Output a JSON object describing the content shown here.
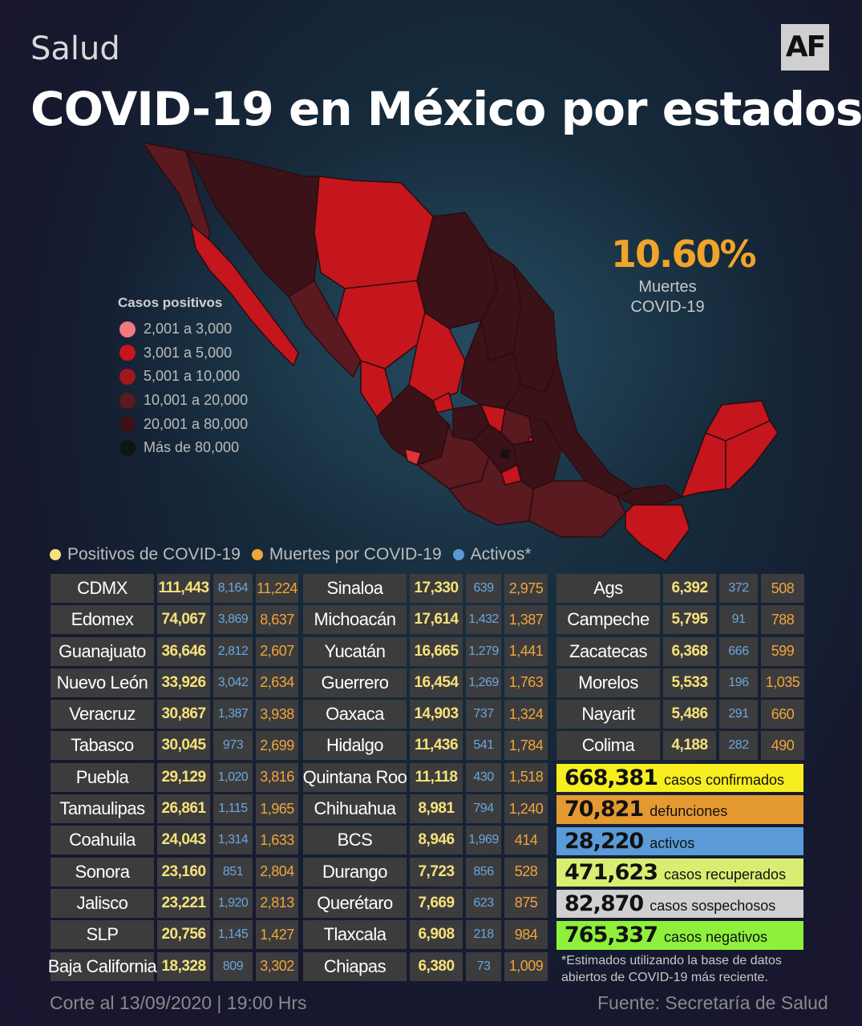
{
  "header": {
    "section": "Salud",
    "logo": "AF",
    "title": "COVID-19 en México por estados"
  },
  "stat": {
    "value": "10.60%",
    "label_line1": "Muertes",
    "label_line2": "COVID-19"
  },
  "legend": {
    "title": "Casos positivos",
    "items": [
      {
        "label": "2,001 a 3,000",
        "color": "#f07a7f"
      },
      {
        "label": "3,001  a  5,000",
        "color": "#c4161c"
      },
      {
        "label": "5,001  a  10,000",
        "color": "#a0181f"
      },
      {
        "label": "10,001 a  20,000",
        "color": "#5a1a1f"
      },
      {
        "label": "20,001 a  80,000",
        "color": "#3b1217"
      },
      {
        "label": "Más  de  80,000",
        "color": "#111416"
      }
    ]
  },
  "key": {
    "positivos": "Positivos de COVID-19",
    "muertes": "Muertes por COVID-19",
    "activos": "Activos*"
  },
  "colors": {
    "positivos": "#f6e27a",
    "muertes": "#f0a53a",
    "activos": "#6aa7dd"
  },
  "states": [
    {
      "name": "CDMX",
      "positivos": "111,443",
      "activos": "8,164",
      "muertes": "11,224"
    },
    {
      "name": "Edomex",
      "positivos": "74,067",
      "activos": "3,869",
      "muertes": "8,637"
    },
    {
      "name": "Guanajuato",
      "positivos": "36,646",
      "activos": "2,812",
      "muertes": "2,607"
    },
    {
      "name": "Nuevo León",
      "positivos": "33,926",
      "activos": "3,042",
      "muertes": "2,634"
    },
    {
      "name": "Veracruz",
      "positivos": "30,867",
      "activos": "1,387",
      "muertes": "3,938"
    },
    {
      "name": "Tabasco",
      "positivos": "30,045",
      "activos": "973",
      "muertes": "2,699"
    },
    {
      "name": "Puebla",
      "positivos": "29,129",
      "activos": "1,020",
      "muertes": "3,816"
    },
    {
      "name": "Tamaulipas",
      "positivos": "26,861",
      "activos": "1,115",
      "muertes": "1,965"
    },
    {
      "name": "Coahuila",
      "positivos": "24,043",
      "activos": "1,314",
      "muertes": "1,633"
    },
    {
      "name": "Sonora",
      "positivos": "23,160",
      "activos": "851",
      "muertes": "2,804"
    },
    {
      "name": "Jalisco",
      "positivos": "23,221",
      "activos": "1,920",
      "muertes": "2,813"
    },
    {
      "name": "SLP",
      "positivos": "20,756",
      "activos": "1,145",
      "muertes": "1,427"
    },
    {
      "name": "Baja California",
      "positivos": "18,328",
      "activos": "809",
      "muertes": "3,302"
    },
    {
      "name": "Sinaloa",
      "positivos": "17,330",
      "activos": "639",
      "muertes": "2,975"
    },
    {
      "name": "Michoacán",
      "positivos": "17,614",
      "activos": "1,432",
      "muertes": "1,387"
    },
    {
      "name": "Yucatán",
      "positivos": "16,665",
      "activos": "1,279",
      "muertes": "1,441"
    },
    {
      "name": "Guerrero",
      "positivos": "16,454",
      "activos": "1,269",
      "muertes": "1,763"
    },
    {
      "name": "Oaxaca",
      "positivos": "14,903",
      "activos": "737",
      "muertes": "1,324"
    },
    {
      "name": "Hidalgo",
      "positivos": "11,436",
      "activos": "541",
      "muertes": "1,784"
    },
    {
      "name": "Quintana Roo",
      "positivos": "11,118",
      "activos": "430",
      "muertes": "1,518"
    },
    {
      "name": "Chihuahua",
      "positivos": "8,981",
      "activos": "794",
      "muertes": "1,240"
    },
    {
      "name": "BCS",
      "positivos": "8,946",
      "activos": "1,969",
      "muertes": "414"
    },
    {
      "name": "Durango",
      "positivos": "7,723",
      "activos": "856",
      "muertes": "528"
    },
    {
      "name": "Querétaro",
      "positivos": "7,669",
      "activos": "623",
      "muertes": "875"
    },
    {
      "name": "Tlaxcala",
      "positivos": "6,908",
      "activos": "218",
      "muertes": "984"
    },
    {
      "name": "Chiapas",
      "positivos": "6,380",
      "activos": "73",
      "muertes": "1,009"
    },
    {
      "name": "Ags",
      "positivos": "6,392",
      "activos": "372",
      "muertes": "508"
    },
    {
      "name": "Campeche",
      "positivos": "5,795",
      "activos": "91",
      "muertes": "788"
    },
    {
      "name": "Zacatecas",
      "positivos": "6,368",
      "activos": "666",
      "muertes": "599"
    },
    {
      "name": "Morelos",
      "positivos": "5,533",
      "activos": "196",
      "muertes": "1,035"
    },
    {
      "name": "Nayarit",
      "positivos": "5,486",
      "activos": "291",
      "muertes": "660"
    },
    {
      "name": "Colima",
      "positivos": "4,188",
      "activos": "282",
      "muertes": "490"
    }
  ],
  "totals": [
    {
      "value": "668,381",
      "label": "casos confirmados",
      "color": "#f7ee1f"
    },
    {
      "value": "70,821",
      "label": "defunciones",
      "color": "#e49a30"
    },
    {
      "value": "28,220",
      "label": "activos",
      "color": "#5a9ad6"
    },
    {
      "value": "471,623",
      "label": "casos recuperados",
      "color": "#d8ee72"
    },
    {
      "value": "82,870",
      "label": "casos sospechosos",
      "color": "#d0d0d0"
    },
    {
      "value": "765,337",
      "label": "casos negativos",
      "color": "#8ef03a"
    }
  ],
  "note": {
    "line1": "*Estimados utilizando la base de datos",
    "line2": "abiertos de COVID-19 más reciente."
  },
  "footer": {
    "left": "Corte al 13/09/2020 | 19:00 Hrs",
    "right": "Fuente: Secretaría de Salud"
  }
}
